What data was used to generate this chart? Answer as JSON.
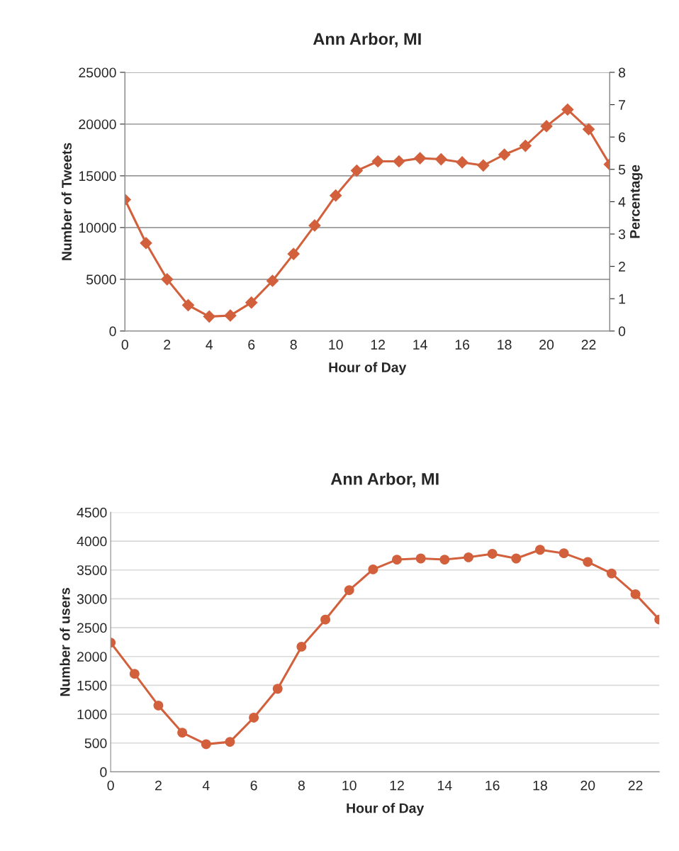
{
  "chart_data": [
    {
      "type": "line",
      "title": "Ann Arbor, MI",
      "xlabel": "Hour of Day",
      "ylabel": "Number of Tweets",
      "y2label": "Percentage",
      "x": [
        0,
        1,
        2,
        3,
        4,
        5,
        6,
        7,
        8,
        9,
        10,
        11,
        12,
        13,
        14,
        15,
        16,
        17,
        18,
        19,
        20,
        21,
        22,
        23
      ],
      "series": [
        {
          "color": "#d2603c",
          "values": [
            12700,
            8500,
            5000,
            2500,
            1400,
            1500,
            2750,
            4850,
            7450,
            10200,
            13100,
            15500,
            16400,
            16400,
            16700,
            16600,
            16300,
            16000,
            17050,
            17900,
            19800,
            21400,
            19500,
            16100
          ]
        }
      ],
      "xlim": [
        0,
        23
      ],
      "xticks": [
        0,
        2,
        4,
        6,
        8,
        10,
        12,
        14,
        16,
        18,
        20,
        22
      ],
      "ylim": [
        0,
        25000
      ],
      "yticks": [
        0,
        5000,
        10000,
        15000,
        20000,
        25000
      ],
      "y2lim": [
        0,
        8
      ],
      "y2ticks": [
        0,
        1,
        2,
        3,
        4,
        5,
        6,
        7,
        8
      ],
      "grid": "y",
      "marker": "diamond",
      "line_style": "solid"
    },
    {
      "type": "line",
      "title": "Ann Arbor, MI",
      "xlabel": "Hour of Day",
      "ylabel": "Number of users",
      "x": [
        0,
        1,
        2,
        3,
        4,
        5,
        6,
        7,
        8,
        9,
        10,
        11,
        12,
        13,
        14,
        15,
        16,
        17,
        18,
        19,
        20,
        21,
        22,
        23
      ],
      "series": [
        {
          "color": "#d2603c",
          "values": [
            2240,
            1700,
            1150,
            680,
            480,
            520,
            940,
            1440,
            2170,
            2640,
            3150,
            3510,
            3680,
            3700,
            3680,
            3720,
            3780,
            3700,
            3850,
            3790,
            3640,
            3440,
            3080,
            2640
          ]
        }
      ],
      "xlim": [
        0,
        23
      ],
      "xticks": [
        0,
        2,
        4,
        6,
        8,
        10,
        12,
        14,
        16,
        18,
        20,
        22
      ],
      "ylim": [
        0,
        4500
      ],
      "yticks": [
        0,
        500,
        1000,
        1500,
        2000,
        2500,
        3000,
        3500,
        4000,
        4500
      ],
      "grid": "y",
      "marker": "circle",
      "line_style": "solid"
    }
  ]
}
